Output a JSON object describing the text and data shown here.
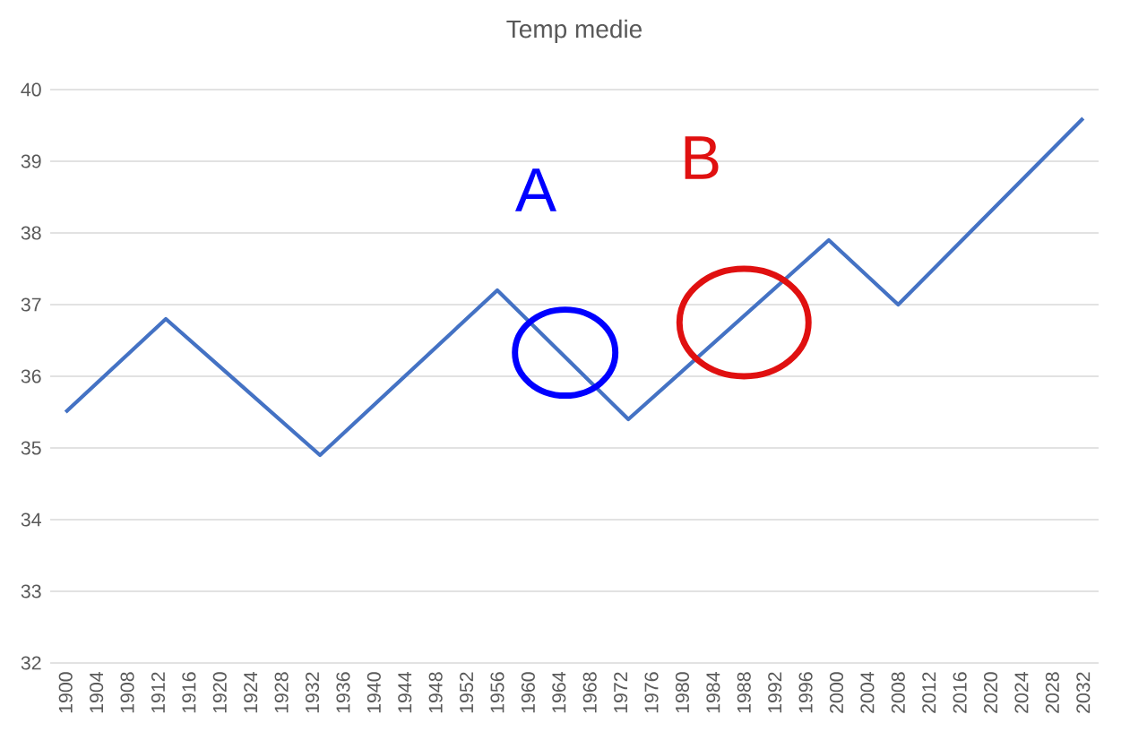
{
  "chart_data": {
    "type": "line",
    "title": "Temp medie",
    "x": [
      1900,
      1913,
      1933,
      1956,
      1973,
      1999,
      2008,
      2032
    ],
    "series": [
      {
        "color": "#4472c4",
        "values": [
          35.5,
          36.8,
          34.9,
          37.2,
          35.4,
          37.9,
          37.0,
          39.6
        ]
      }
    ],
    "xlim": [
      1898,
      2034
    ],
    "xticks": [
      1900,
      1904,
      1908,
      1912,
      1916,
      1920,
      1924,
      1928,
      1932,
      1936,
      1940,
      1944,
      1948,
      1952,
      1956,
      1960,
      1964,
      1968,
      1972,
      1976,
      1980,
      1984,
      1988,
      1992,
      1996,
      2000,
      2004,
      2008,
      2012,
      2016,
      2020,
      2024,
      2028,
      2032
    ],
    "ylim": [
      32,
      40
    ],
    "yticks": [
      32,
      33,
      34,
      35,
      36,
      37,
      38,
      39,
      40
    ],
    "grid": "y",
    "marker": "none",
    "line_style": "solid",
    "annotations": [
      "A",
      "B"
    ]
  }
}
